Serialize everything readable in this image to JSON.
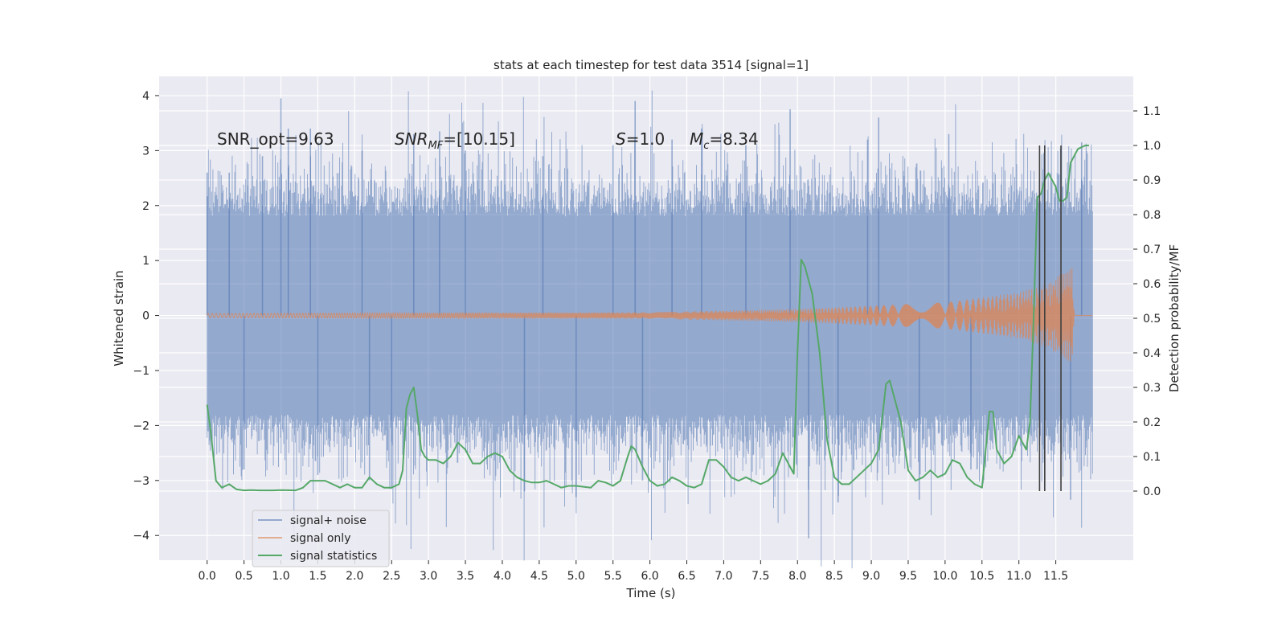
{
  "chart_data": {
    "type": "line",
    "title": "stats at each timestep for test data 3514 [signal=1]",
    "xlabel": "Time (s)",
    "ylabel": "Whitened strain",
    "y2label": "Detection probability/MF",
    "xlim": [
      -0.65,
      12.55
    ],
    "ylim": [
      -4.45,
      4.35
    ],
    "y2lim": [
      -0.2,
      1.2
    ],
    "x_ticks": [
      0.0,
      0.5,
      1.0,
      1.5,
      2.0,
      2.5,
      3.0,
      3.5,
      4.0,
      4.5,
      5.0,
      5.5,
      6.0,
      6.5,
      7.0,
      7.5,
      8.0,
      8.5,
      9.0,
      9.5,
      10.0,
      10.5,
      11.0,
      11.5
    ],
    "x_tick_labels": [
      "0.0",
      "0.5",
      "1.0",
      "1.5",
      "2.0",
      "2.5",
      "3.0",
      "3.5",
      "4.0",
      "4.5",
      "5.0",
      "5.5",
      "6.0",
      "6.5",
      "7.0",
      "7.5",
      "8.0",
      "8.5",
      "9.0",
      "9.5",
      "10.0",
      "10.5",
      "11.0",
      "11.5"
    ],
    "y_ticks": [
      -4,
      -3,
      -2,
      -1,
      0,
      1,
      2,
      3,
      4
    ],
    "y_tick_labels": [
      "−4",
      "−3",
      "−2",
      "−1",
      "0",
      "1",
      "2",
      "3",
      "4"
    ],
    "y2_ticks": [
      0.0,
      0.1,
      0.2,
      0.3,
      0.4,
      0.5,
      0.6,
      0.7,
      0.8,
      0.9,
      1.0,
      1.1
    ],
    "y2_tick_labels": [
      "0.0",
      "0.1",
      "0.2",
      "0.3",
      "0.4",
      "0.5",
      "0.6",
      "0.7",
      "0.8",
      "0.9",
      "1.0",
      "1.1"
    ],
    "grid": true,
    "legend_position": "bottom-left",
    "colors": {
      "background": "#eaeaf2",
      "grid": "#ffffff",
      "noise": "#4c72b0",
      "signal": "#dd8452",
      "stats": "#55a868",
      "vlines": "#404040"
    },
    "annotations": [
      {
        "text": "SNR_opt=9.63",
        "x": 0.2,
        "y": 3.1
      },
      {
        "text": "SNR",
        "sub": "MF",
        "rest": "=[10.15]",
        "x": 2.6,
        "y": 3.1
      },
      {
        "text": "S",
        "rest": "=1.0",
        "x": 5.6,
        "y": 3.1
      },
      {
        "text": "M",
        "sub": "c",
        "rest": "=8.34",
        "x": 6.6,
        "y": 3.1
      }
    ],
    "series": [
      {
        "name": "signal+ noise",
        "axis": "left",
        "style": "dense-noise",
        "x_range": [
          0.0,
          12.0
        ],
        "envelope_core": [
          -1.8,
          1.8
        ],
        "peaks": [
          {
            "x": 0.0,
            "y": 2.6
          },
          {
            "x": 0.3,
            "y": 2.6
          },
          {
            "x": 0.5,
            "y": -2.8
          },
          {
            "x": 0.75,
            "y": 2.9
          },
          {
            "x": 1.0,
            "y": 3.95
          },
          {
            "x": 1.1,
            "y": 3.4
          },
          {
            "x": 1.4,
            "y": 3.4
          },
          {
            "x": 1.5,
            "y": -2.9
          },
          {
            "x": 2.1,
            "y": 3.0
          },
          {
            "x": 2.2,
            "y": -3.0
          },
          {
            "x": 2.5,
            "y": -3.15
          },
          {
            "x": 2.8,
            "y": 3.3
          },
          {
            "x": 3.15,
            "y": 3.35
          },
          {
            "x": 3.5,
            "y": 3.0
          },
          {
            "x": 4.3,
            "y": -3.2
          },
          {
            "x": 4.55,
            "y": 2.9
          },
          {
            "x": 5.0,
            "y": -3.3
          },
          {
            "x": 5.5,
            "y": 3.1
          },
          {
            "x": 5.8,
            "y": 3.9
          },
          {
            "x": 5.9,
            "y": -3.0
          },
          {
            "x": 6.3,
            "y": 3.2
          },
          {
            "x": 6.7,
            "y": 3.4
          },
          {
            "x": 7.3,
            "y": 3.1
          },
          {
            "x": 7.9,
            "y": 3.75
          },
          {
            "x": 8.15,
            "y": -4.05
          },
          {
            "x": 8.55,
            "y": -3.4
          },
          {
            "x": 8.95,
            "y": 3.2
          },
          {
            "x": 9.1,
            "y": 3.6
          },
          {
            "x": 9.65,
            "y": -3.35
          },
          {
            "x": 10.05,
            "y": 3.3
          },
          {
            "x": 10.35,
            "y": -2.8
          },
          {
            "x": 11.35,
            "y": -3.0
          },
          {
            "x": 11.7,
            "y": -3.35
          },
          {
            "x": 11.85,
            "y": 3.15
          }
        ]
      },
      {
        "name": "signal only",
        "axis": "left",
        "style": "chirp",
        "x_range": [
          0.0,
          12.0
        ],
        "amplitude": [
          {
            "x": 0.0,
            "y": 0.04
          },
          {
            "x": 6.0,
            "y": 0.06
          },
          {
            "x": 8.0,
            "y": 0.12
          },
          {
            "x": 10.0,
            "y": 0.24
          },
          {
            "x": 11.0,
            "y": 0.42
          },
          {
            "x": 11.4,
            "y": 0.58
          },
          {
            "x": 11.6,
            "y": 0.78
          },
          {
            "x": 11.72,
            "y": 0.9
          },
          {
            "x": 11.75,
            "y": 0.0
          },
          {
            "x": 12.0,
            "y": 0.0
          }
        ]
      },
      {
        "name": "signal statistics",
        "axis": "right",
        "x": [
          0.0,
          0.05,
          0.12,
          0.2,
          0.3,
          0.4,
          0.5,
          0.6,
          0.7,
          0.9,
          1.0,
          1.2,
          1.3,
          1.4,
          1.5,
          1.6,
          1.7,
          1.8,
          1.9,
          2.0,
          2.1,
          2.2,
          2.3,
          2.4,
          2.5,
          2.6,
          2.65,
          2.7,
          2.75,
          2.8,
          2.85,
          2.9,
          2.95,
          3.0,
          3.1,
          3.2,
          3.3,
          3.4,
          3.5,
          3.6,
          3.7,
          3.8,
          3.9,
          4.0,
          4.1,
          4.2,
          4.3,
          4.4,
          4.5,
          4.6,
          4.7,
          4.8,
          4.9,
          5.0,
          5.2,
          5.3,
          5.4,
          5.5,
          5.6,
          5.7,
          5.75,
          5.8,
          5.9,
          6.0,
          6.1,
          6.2,
          6.3,
          6.4,
          6.5,
          6.6,
          6.7,
          6.8,
          6.9,
          7.0,
          7.1,
          7.2,
          7.3,
          7.4,
          7.5,
          7.6,
          7.7,
          7.8,
          7.9,
          7.95,
          8.0,
          8.05,
          8.1,
          8.2,
          8.3,
          8.4,
          8.5,
          8.6,
          8.7,
          8.8,
          8.9,
          9.0,
          9.1,
          9.2,
          9.25,
          9.3,
          9.4,
          9.5,
          9.6,
          9.7,
          9.8,
          9.9,
          10.0,
          10.1,
          10.2,
          10.3,
          10.4,
          10.5,
          10.6,
          10.65,
          10.7,
          10.8,
          10.9,
          11.0,
          11.05,
          11.1,
          11.15,
          11.2,
          11.25,
          11.3,
          11.35,
          11.4,
          11.45,
          11.5,
          11.55,
          11.6,
          11.65,
          11.7,
          11.8,
          11.9,
          11.95
        ],
        "values": [
          0.25,
          0.17,
          0.03,
          0.01,
          0.02,
          0.005,
          0.002,
          0.003,
          0.002,
          0.002,
          0.003,
          0.002,
          0.01,
          0.03,
          0.03,
          0.03,
          0.02,
          0.01,
          0.02,
          0.01,
          0.01,
          0.04,
          0.02,
          0.01,
          0.01,
          0.02,
          0.06,
          0.24,
          0.28,
          0.3,
          0.22,
          0.12,
          0.1,
          0.09,
          0.09,
          0.08,
          0.1,
          0.14,
          0.12,
          0.08,
          0.08,
          0.1,
          0.11,
          0.1,
          0.06,
          0.04,
          0.03,
          0.025,
          0.025,
          0.03,
          0.02,
          0.01,
          0.015,
          0.015,
          0.01,
          0.03,
          0.025,
          0.015,
          0.03,
          0.1,
          0.13,
          0.12,
          0.07,
          0.03,
          0.015,
          0.02,
          0.04,
          0.03,
          0.015,
          0.01,
          0.02,
          0.09,
          0.09,
          0.07,
          0.04,
          0.03,
          0.04,
          0.03,
          0.02,
          0.03,
          0.05,
          0.11,
          0.07,
          0.05,
          0.4,
          0.67,
          0.65,
          0.57,
          0.4,
          0.15,
          0.04,
          0.02,
          0.02,
          0.04,
          0.06,
          0.08,
          0.12,
          0.31,
          0.32,
          0.28,
          0.2,
          0.06,
          0.03,
          0.04,
          0.06,
          0.04,
          0.05,
          0.09,
          0.08,
          0.04,
          0.02,
          0.01,
          0.23,
          0.23,
          0.12,
          0.08,
          0.1,
          0.16,
          0.14,
          0.12,
          0.2,
          0.5,
          0.85,
          0.86,
          0.9,
          0.92,
          0.9,
          0.88,
          0.84,
          0.84,
          0.85,
          0.95,
          0.99,
          1.0,
          1.0
        ],
        "vlines": [
          11.28,
          11.35,
          11.57
        ],
        "vline_range": [
          0.0,
          1.0
        ]
      }
    ]
  }
}
